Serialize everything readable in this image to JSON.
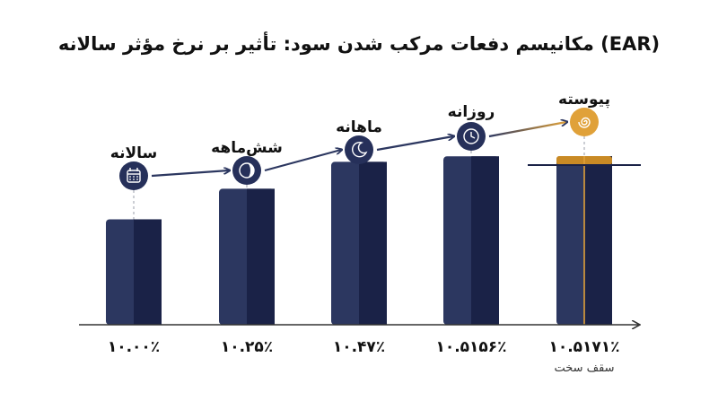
{
  "title": "مکانیسم دفعات مرکب شدن سود: تأثیر بر نرخ مؤثر سالانه (EAR)",
  "colors": {
    "bar_dark": "#2c3760",
    "bar_darker": "#1a2247",
    "icon_fill": "#26305a",
    "accent": "#e0a139",
    "accent_dark": "#c98a25",
    "axis": "#333333",
    "ceiling_line": "#1a2247",
    "connector": "#2c3760"
  },
  "chart_data": {
    "type": "bar",
    "title": "مکانیسم دفعات مرکب شدن سود: تأثیر بر نرخ مؤثر سالانه (EAR)",
    "categories": [
      "سالانه",
      "شش‌ماهه",
      "ماهانه",
      "روزانه",
      "پیوسته"
    ],
    "values": [
      10.0,
      10.25,
      10.47,
      10.5156,
      10.5171
    ],
    "value_labels": [
      "۱۰.۰۰٪",
      "۱۰.۲۵٪",
      "۱۰.۴۷٪",
      "۱۰.۵۱۵۶٪",
      "۱۰.۵۱۷۱٪"
    ],
    "icons": [
      "calendar-icon",
      "half-moon-icon",
      "crescent-moon-icon",
      "clock-icon",
      "spiral-icon"
    ],
    "ceiling_label": "سقف سخت",
    "ceiling_value": 10.5171,
    "highlight_index": 4,
    "grid": false,
    "legend": "none",
    "xlabel": "",
    "ylabel": ""
  }
}
